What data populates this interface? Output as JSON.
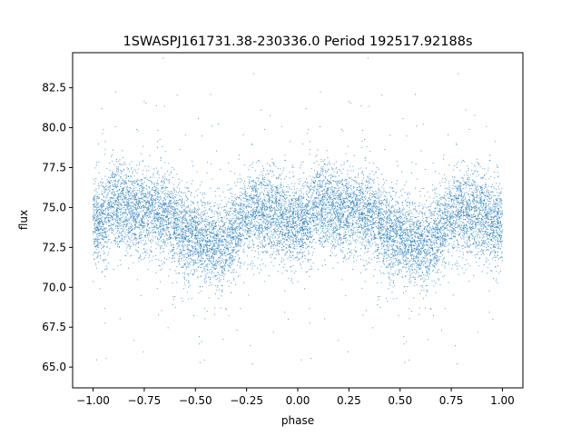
{
  "chart_data": {
    "type": "scatter",
    "title": "1SWASPJ161731.38-230336.0 Period 192517.92188s",
    "xlabel": "phase",
    "ylabel": "flux",
    "xlim": [
      -1.1,
      1.1
    ],
    "ylim": [
      63.7,
      84.7
    ],
    "x_ticks": [
      -1.0,
      -0.75,
      -0.5,
      -0.25,
      0.0,
      0.25,
      0.5,
      0.75,
      1.0
    ],
    "x_tick_labels": [
      "−1.00",
      "−0.75",
      "−0.50",
      "−0.25",
      "0.00",
      "0.25",
      "0.50",
      "0.75",
      "1.00"
    ],
    "y_ticks": [
      65.0,
      67.5,
      70.0,
      72.5,
      75.0,
      77.5,
      80.0,
      82.5
    ],
    "y_tick_labels": [
      "65.0",
      "67.5",
      "70.0",
      "72.5",
      "75.0",
      "77.5",
      "80.0",
      "82.5"
    ],
    "grid": false,
    "legend": "none",
    "point_color": "#1f77b4",
    "light_curve": {
      "phase": [
        0.0,
        0.05,
        0.1,
        0.15,
        0.2,
        0.25,
        0.3,
        0.35,
        0.4,
        0.45,
        0.5,
        0.55,
        0.6,
        0.65,
        0.7,
        0.75,
        0.8,
        0.85,
        0.9,
        0.95,
        1.0
      ],
      "median_flux": [
        74.0,
        74.3,
        75.3,
        75.2,
        74.8,
        74.5,
        74.9,
        74.6,
        74.0,
        73.4,
        73.0,
        72.7,
        72.6,
        73.0,
        73.6,
        74.3,
        74.6,
        74.4,
        74.6,
        74.2,
        74.0
      ],
      "scatter": 1.3
    }
  }
}
